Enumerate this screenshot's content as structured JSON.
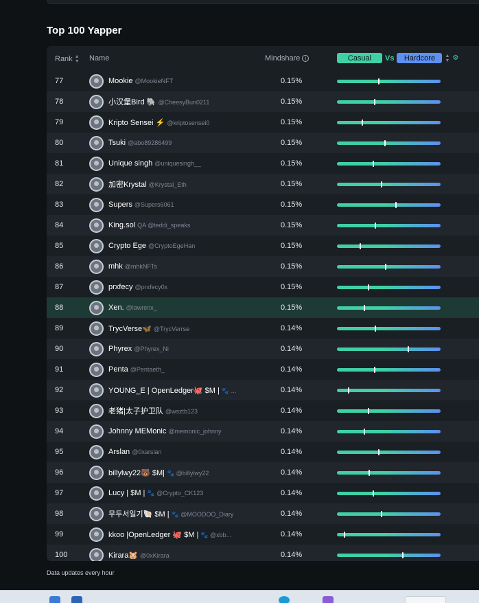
{
  "section_title": "Top 100 Yapper",
  "headers": {
    "rank": "Rank",
    "name": "Name",
    "mindshare": "Mindshare"
  },
  "toggle": {
    "casual": "Casual",
    "vs": "Vs",
    "hardcore": "Hardcore"
  },
  "footer_note": "Data updates every hour",
  "colors": {
    "casual": "#3fd1a5",
    "hardcore": "#5d90f0",
    "highlight_row": "#1e3a35"
  },
  "rows": [
    {
      "rank": "77",
      "name": "Mookie",
      "handle": "@MookieNFT",
      "mindshare": "0.15%",
      "position": 0.4
    },
    {
      "rank": "78",
      "name": "小汉堡Bird 🐘",
      "handle": "@CheesyBun0211",
      "mindshare": "0.15%",
      "position": 0.36
    },
    {
      "rank": "79",
      "name": "Kripto Sensei ⚡",
      "handle": "@kriptosensei0",
      "mindshare": "0.15%",
      "position": 0.24
    },
    {
      "rank": "80",
      "name": "Tsuki",
      "handle": "@abo89286499",
      "mindshare": "0.15%",
      "position": 0.46
    },
    {
      "rank": "81",
      "name": "Unique singh",
      "handle": "@uniquesingh__",
      "mindshare": "0.15%",
      "position": 0.35
    },
    {
      "rank": "82",
      "name": "加密Krystal",
      "handle": "@Krystal_Eth",
      "mindshare": "0.15%",
      "position": 0.43
    },
    {
      "rank": "83",
      "name": "Supers",
      "handle": "@Supers6061",
      "mindshare": "0.15%",
      "position": 0.57
    },
    {
      "rank": "84",
      "name": "King.sol",
      "handle": "QA @teddi_speaks",
      "mindshare": "0.15%",
      "position": 0.37
    },
    {
      "rank": "85",
      "name": "Crypto Ege",
      "handle": "@CryptoEgeHan",
      "mindshare": "0.15%",
      "position": 0.22
    },
    {
      "rank": "86",
      "name": "mhk",
      "handle": "@mhkNFTs",
      "mindshare": "0.15%",
      "position": 0.47
    },
    {
      "rank": "87",
      "name": "prxfecy",
      "handle": "@prxfecy0x",
      "mindshare": "0.15%",
      "position": 0.3
    },
    {
      "rank": "88",
      "name": "Xen.",
      "handle": "@lawrenx_",
      "mindshare": "0.15%",
      "position": 0.26,
      "highlight": true
    },
    {
      "rank": "89",
      "name": "TrycVerse🦋",
      "handle": "@TrycVerrse",
      "mindshare": "0.14%",
      "position": 0.37
    },
    {
      "rank": "90",
      "name": "Phyrex",
      "handle": "@Phyrex_Ni",
      "mindshare": "0.14%",
      "position": 0.69
    },
    {
      "rank": "91",
      "name": "Penta",
      "handle": "@Pentaeth_",
      "mindshare": "0.14%",
      "position": 0.36
    },
    {
      "rank": "92",
      "name": "YOUNG_E | OpenLedger🐙 $M |",
      "handle": "🐾 ...",
      "mindshare": "0.14%",
      "position": 0.11
    },
    {
      "rank": "93",
      "name": "老猪|太子护卫队",
      "handle": "@wsztb123",
      "mindshare": "0.14%",
      "position": 0.3
    },
    {
      "rank": "94",
      "name": "Johnny MEMonic",
      "handle": "@memonic_johnny",
      "mindshare": "0.14%",
      "position": 0.26
    },
    {
      "rank": "95",
      "name": "Arslan",
      "handle": "@0xarslan",
      "mindshare": "0.14%",
      "position": 0.4
    },
    {
      "rank": "96",
      "name": "billylwy22🐻 $M|",
      "handle": "🐾 @billylwy22",
      "mindshare": "0.14%",
      "position": 0.31
    },
    {
      "rank": "97",
      "name": "Lucy | $M |",
      "handle": "🐾 @Crypto_CK123",
      "mindshare": "0.14%",
      "position": 0.35
    },
    {
      "rank": "98",
      "name": "무두서일기🐚 $M |",
      "handle": "🐾 @MOODOO_Diary",
      "mindshare": "0.14%",
      "position": 0.43
    },
    {
      "rank": "99",
      "name": "kkoo |OpenLedger 🐙 $M |",
      "handle": "🐾 @xbb...",
      "mindshare": "0.14%",
      "position": 0.07
    },
    {
      "rank": "100",
      "name": "Kirara🐹",
      "handle": "@0xKirara",
      "mindshare": "0.14%",
      "position": 0.64
    }
  ]
}
